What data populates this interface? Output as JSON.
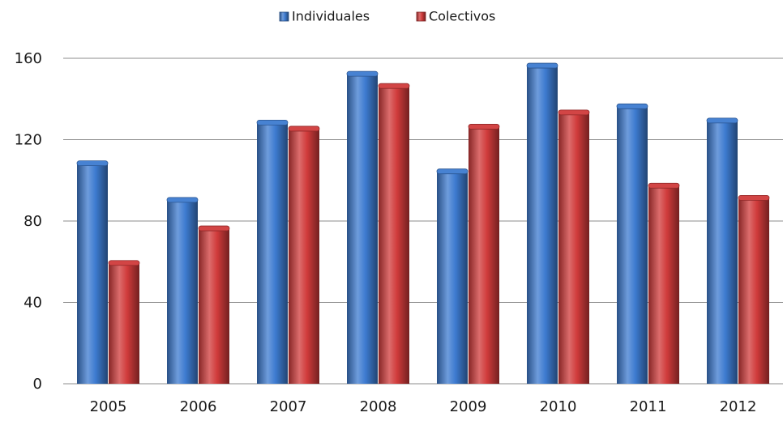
{
  "chart_data": {
    "type": "bar",
    "categories": [
      "2005",
      "2006",
      "2007",
      "2008",
      "2009",
      "2010",
      "2011",
      "2012"
    ],
    "series": [
      {
        "name": "Individuales",
        "values": [
          108,
          90,
          128,
          152,
          104,
          156,
          136,
          129
        ],
        "color": "#3d7bd0"
      },
      {
        "name": "Colectivos",
        "values": [
          59,
          76,
          125,
          146,
          126,
          133,
          97,
          91
        ],
        "color": "#d03b3b"
      }
    ],
    "ylim": [
      0,
      160
    ],
    "yticks": [
      0,
      40,
      80,
      120,
      160
    ],
    "grid": true,
    "legend_position": "top-center"
  }
}
